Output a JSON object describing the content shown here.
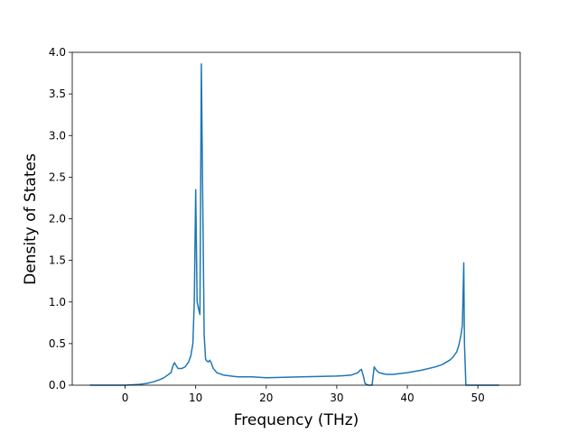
{
  "chart_data": {
    "type": "line",
    "title": "",
    "xlabel": "Frequency (THz)",
    "ylabel": "Density of States",
    "xlim": [
      -7.5,
      56.0
    ],
    "ylim": [
      0.0,
      4.0
    ],
    "xticks": [
      0,
      10,
      20,
      30,
      40,
      50
    ],
    "xtick_labels": [
      "0",
      "10",
      "20",
      "30",
      "40",
      "50"
    ],
    "yticks": [
      0.0,
      0.5,
      1.0,
      1.5,
      2.0,
      2.5,
      3.0,
      3.5,
      4.0
    ],
    "ytick_labels": [
      "0.0",
      "0.5",
      "1.0",
      "1.5",
      "2.0",
      "2.5",
      "3.0",
      "3.5",
      "4.0"
    ],
    "grid": false,
    "legend": "none",
    "line_color": "#1f77b4",
    "series": [
      {
        "x": [
          -5.0,
          0.0,
          2.0,
          3.0,
          4.0,
          5.0,
          5.5,
          6.0,
          6.5,
          6.8,
          7.0,
          7.2,
          7.5,
          8.0,
          8.5,
          9.0,
          9.3,
          9.6,
          9.8,
          10.0,
          10.2,
          10.4,
          10.6,
          10.8,
          11.0,
          11.2,
          11.4,
          11.6,
          11.8,
          12.0,
          12.2,
          12.5,
          13.0,
          14.0,
          15.0,
          16.0,
          18.0,
          20.0,
          25.0,
          30.0,
          32.0,
          33.0,
          33.3,
          33.5,
          33.8,
          34.0,
          34.5,
          35.0,
          35.3,
          35.6,
          36.0,
          37.0,
          38.0,
          40.0,
          42.0,
          44.0,
          45.0,
          46.0,
          46.5,
          47.0,
          47.3,
          47.6,
          47.8,
          48.0,
          48.1,
          48.3,
          49.0,
          50.0,
          53.0
        ],
        "y": [
          0.0,
          0.0,
          0.01,
          0.02,
          0.04,
          0.07,
          0.09,
          0.12,
          0.15,
          0.24,
          0.27,
          0.24,
          0.2,
          0.2,
          0.22,
          0.28,
          0.35,
          0.5,
          1.0,
          2.35,
          1.0,
          0.92,
          0.85,
          3.86,
          2.2,
          0.6,
          0.31,
          0.29,
          0.28,
          0.3,
          0.27,
          0.2,
          0.15,
          0.12,
          0.11,
          0.1,
          0.1,
          0.09,
          0.1,
          0.11,
          0.12,
          0.15,
          0.18,
          0.19,
          0.1,
          0.02,
          0.0,
          0.0,
          0.22,
          0.18,
          0.15,
          0.13,
          0.13,
          0.15,
          0.18,
          0.22,
          0.25,
          0.3,
          0.34,
          0.4,
          0.48,
          0.6,
          0.72,
          1.47,
          0.5,
          0.0,
          0.0,
          0.0,
          0.0
        ]
      }
    ]
  }
}
